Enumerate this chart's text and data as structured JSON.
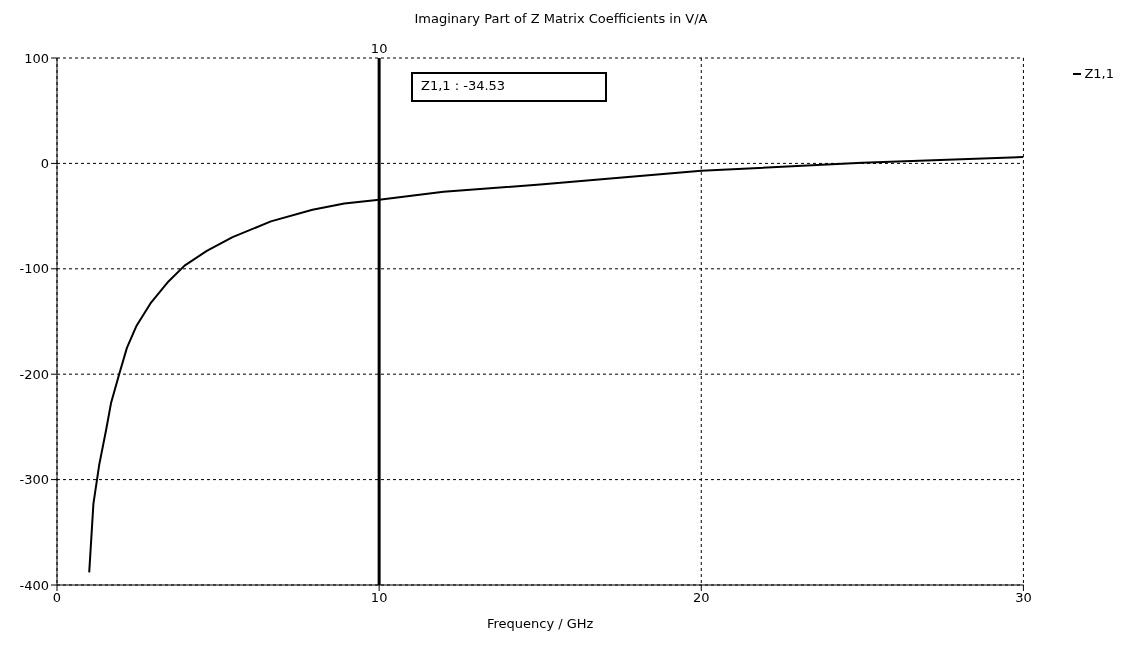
{
  "chart_data": {
    "type": "line",
    "title": "Imaginary Part of Z Matrix Coefficients in V/A",
    "xlabel": "Frequency / GHz",
    "series": [
      {
        "name": "Z1,1",
        "color": "#000000",
        "x": [
          1,
          1.13,
          1.31,
          1.53,
          1.68,
          1.93,
          2.17,
          2.47,
          2.92,
          3.46,
          3.96,
          4.65,
          5.45,
          6.64,
          7.93,
          8.92,
          10,
          12,
          15,
          20,
          25,
          30
        ],
        "values": [
          -388,
          -323,
          -286,
          -252,
          -227,
          -200,
          -175,
          -154,
          -132,
          -112,
          -97,
          -83,
          -70,
          -55,
          -44,
          -38,
          -34.53,
          -27,
          -20,
          -7,
          0.5,
          6
        ]
      }
    ],
    "xlim": [
      0,
      30
    ],
    "xticks": [
      0,
      10,
      20,
      30
    ],
    "ylim": [
      -400,
      100
    ],
    "yticks": [
      -400,
      -300,
      -200,
      -100,
      0,
      100
    ],
    "grid": true,
    "legend": "top right",
    "marker": "none",
    "line_style": "solid",
    "ref_lines": [
      {
        "axis": "x",
        "value": 10,
        "label": "10",
        "color": "#000000"
      }
    ],
    "annotations": [
      "Z1,1 : -34.53"
    ]
  }
}
